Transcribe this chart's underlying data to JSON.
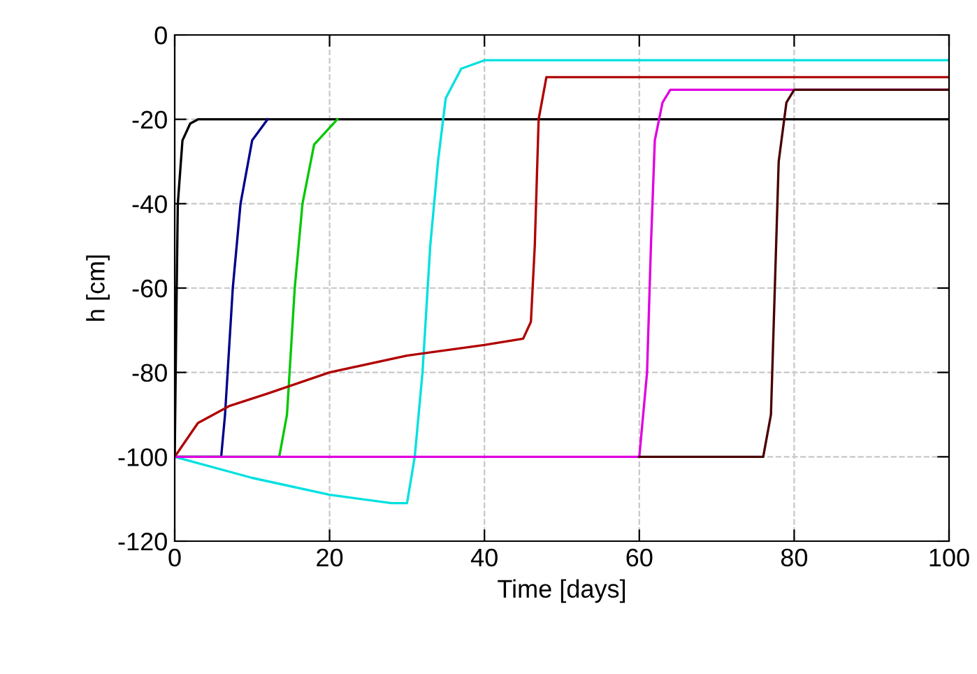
{
  "chart_data": {
    "type": "line",
    "xlabel": "Time [days]",
    "ylabel": "h [cm]",
    "xlim": [
      0,
      100
    ],
    "ylim": [
      -120,
      0
    ],
    "xticks": [
      0,
      20,
      40,
      60,
      80,
      100
    ],
    "yticks": [
      -120,
      -100,
      -80,
      -60,
      -40,
      -20,
      0
    ],
    "grid": true,
    "line_style": "solid",
    "series": [
      {
        "color": "#000000",
        "x": [
          0,
          0.2,
          0.4,
          1,
          2,
          3,
          100
        ],
        "values": [
          -100,
          -68,
          -40,
          -25,
          -21,
          -20,
          -20
        ]
      },
      {
        "color": "#00008b",
        "x": [
          0,
          6,
          6.5,
          7.5,
          8.5,
          10,
          12
        ],
        "values": [
          -100,
          -100,
          -90,
          -60,
          -40,
          -25,
          -20
        ]
      },
      {
        "color": "#00c800",
        "x": [
          0,
          13.5,
          14.5,
          15.5,
          16.5,
          18,
          21
        ],
        "values": [
          -100,
          -100,
          -90,
          -60,
          -40,
          -26,
          -20
        ]
      },
      {
        "color": "#00e0e0",
        "x": [
          0,
          10,
          20,
          28,
          30,
          31,
          32,
          33,
          34,
          35,
          37,
          40,
          100
        ],
        "values": [
          -100,
          -105,
          -109,
          -111,
          -111,
          -100,
          -80,
          -50,
          -30,
          -15,
          -8,
          -6,
          -6
        ]
      },
      {
        "color": "#b00000",
        "x": [
          0,
          3,
          7,
          12,
          20,
          30,
          40,
          45,
          46,
          46.5,
          47,
          48,
          100
        ],
        "values": [
          -100,
          -92,
          -88,
          -85,
          -80,
          -76,
          -73.5,
          -72,
          -68,
          -50,
          -20,
          -10,
          -10
        ]
      },
      {
        "color": "#e000e0",
        "x": [
          0,
          60,
          61,
          61.5,
          62,
          63,
          64,
          100
        ],
        "values": [
          -100,
          -100,
          -80,
          -50,
          -25,
          -16,
          -13,
          -13
        ]
      },
      {
        "color": "#4a0000",
        "x": [
          60,
          76,
          77,
          77.5,
          78,
          79,
          80,
          100
        ],
        "values": [
          -100,
          -100,
          -90,
          -60,
          -30,
          -16,
          -13,
          -13
        ]
      }
    ]
  }
}
